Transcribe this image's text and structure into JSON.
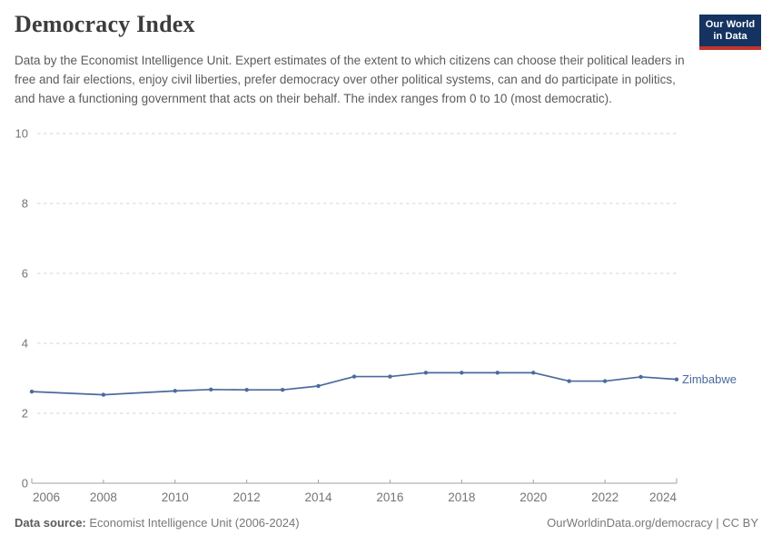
{
  "header": {
    "title": "Democracy Index",
    "logo_line1": "Our World",
    "logo_line2": "in Data"
  },
  "subtitle": "Data by the Economist Intelligence Unit. Expert estimates of the extent to which citizens can choose their political leaders in free and fair elections, enjoy civil liberties, prefer democracy over other political systems, can and do participate in politics, and have a functioning government that acts on their behalf. The index ranges from 0 to 10 (most democratic).",
  "chart_data": {
    "type": "line",
    "title": "Democracy Index",
    "xlabel": "",
    "ylabel": "",
    "x": [
      2006,
      2008,
      2010,
      2011,
      2012,
      2013,
      2014,
      2015,
      2016,
      2017,
      2018,
      2019,
      2020,
      2021,
      2022,
      2023,
      2024
    ],
    "series": [
      {
        "name": "Zimbabwe",
        "values": [
          2.62,
          2.53,
          2.64,
          2.68,
          2.67,
          2.67,
          2.78,
          3.05,
          3.05,
          3.16,
          3.16,
          3.16,
          3.16,
          2.92,
          2.92,
          3.04,
          2.97
        ]
      }
    ],
    "xlim": [
      2006,
      2024
    ],
    "ylim": [
      0,
      10
    ],
    "xticks": [
      2006,
      2008,
      2010,
      2012,
      2014,
      2016,
      2018,
      2020,
      2022,
      2024
    ],
    "yticks": [
      0,
      2,
      4,
      6,
      8,
      10
    ],
    "grid": "horizontal-dashed",
    "legend_position": "line-end",
    "end_label": "Zimbabwe",
    "markers": true
  },
  "footer": {
    "source_label": "Data source:",
    "source_value": " Economist Intelligence Unit (2006-2024)",
    "credit": "OurWorldinData.org/democracy | CC BY"
  },
  "colors": {
    "accent": "#4C6A9C",
    "logo_bg": "#143360",
    "logo_stripe": "#C5342E",
    "grid": "#d5d5d5",
    "axis": "#a1a1a1",
    "tick_label": "#757575",
    "title_text": "#3d3d3d",
    "subtitle_text": "#5b5b5b",
    "footer_text": "#787878",
    "footer_label": "#5b5b5b"
  }
}
